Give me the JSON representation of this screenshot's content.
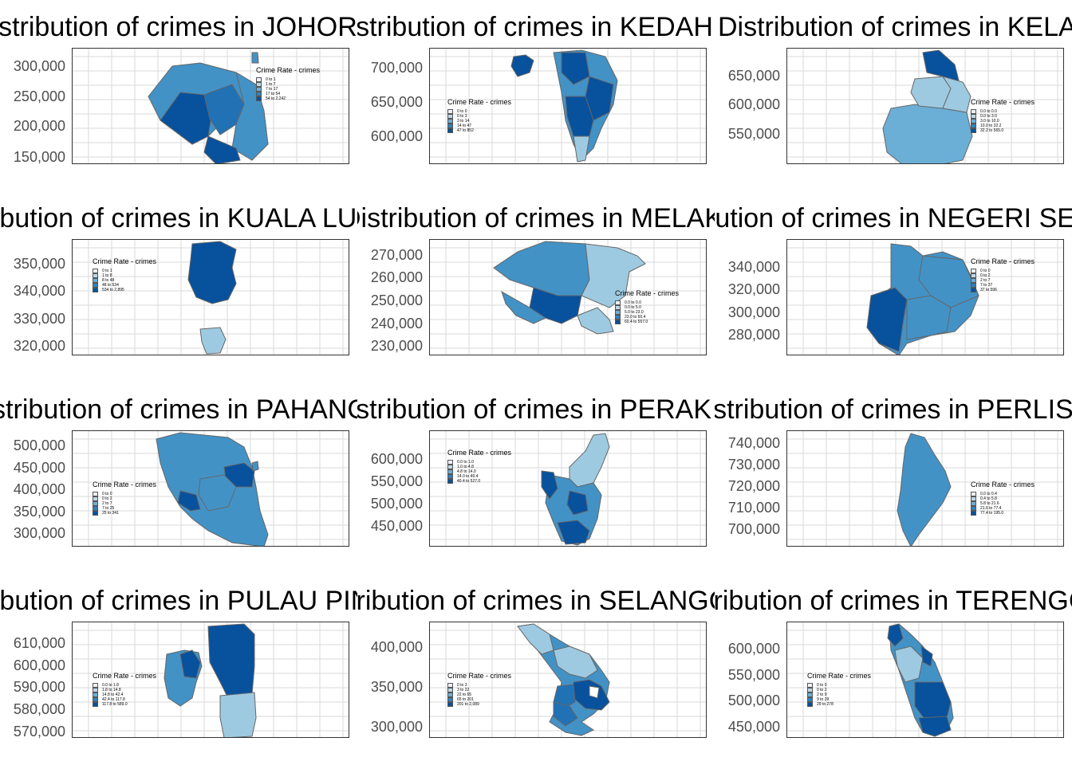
{
  "palette": [
    "#eff3ff",
    "#bdd7e7",
    "#6baed6",
    "#3182bd",
    "#08519c"
  ],
  "panels": [
    {
      "title": "Distribution of crimes in JOHOR",
      "legend_title": "Crime Rate - crimes",
      "y_ticks": [
        "300,000",
        "250,000",
        "200,000",
        "150,000"
      ],
      "legend_items": [
        "0 to 1",
        "1 to 7",
        "7 to 17",
        "17 to 54",
        "54 to 2,242"
      ]
    },
    {
      "title": "Distribution of crimes in KEDAH",
      "legend_title": "Crime Rate - crimes",
      "y_ticks": [
        "700,000",
        "650,000",
        "600,000"
      ],
      "legend_items": [
        "0 to 0",
        "0 to 3",
        "3 to 14",
        "14 to 47",
        "47 to 852"
      ]
    },
    {
      "title": "Distribution of crimes in KELANTAN",
      "legend_title": "Crime Rate - crimes",
      "y_ticks": [
        "650,000",
        "600,000",
        "550,000"
      ],
      "legend_items": [
        "0.0 to 0.0",
        "0.0 to 3.0",
        "3.0 to 10.0",
        "10.0 to 32.2",
        "32.2 to 565.0"
      ]
    },
    {
      "title": "Distribution of crimes in KUALA LUMPUR",
      "legend_title": "Crime Rate - crimes",
      "y_ticks": [
        "350,000",
        "340,000",
        "330,000",
        "320,000"
      ],
      "legend_items": [
        "0 to 1",
        "1 to 8",
        "8 to 48",
        "48 to 534",
        "534 to 2,895"
      ]
    },
    {
      "title": "Distribution of crimes in MELAKA",
      "legend_title": "Crime Rate - crimes",
      "y_ticks": [
        "270,000",
        "260,000",
        "250,000",
        "240,000",
        "230,000"
      ],
      "legend_items": [
        "0.0 to 0.0",
        "0.0 to 5.0",
        "5.0 to 23.0",
        "23.0 to 60.4",
        "60.4 to 557.0"
      ]
    },
    {
      "title": "Distribution of crimes in NEGERI SEMBILAN",
      "legend_title": "Crime Rate - crimes",
      "y_ticks": [
        "340,000",
        "320,000",
        "300,000",
        "280,000"
      ],
      "legend_items": [
        "0 to 0",
        "0 to 2",
        "2 to 7",
        "7 to 37",
        "37 to 596"
      ]
    },
    {
      "title": "Distribution of crimes in PAHANG",
      "legend_title": "Crime Rate - crimes",
      "y_ticks": [
        "500,000",
        "450,000",
        "400,000",
        "350,000",
        "300,000"
      ],
      "legend_items": [
        "0 to 0",
        "0 to 2",
        "2 to 7",
        "7 to 25",
        "25 to 341"
      ]
    },
    {
      "title": "Distribution of crimes in PERAK",
      "legend_title": "Crime Rate - crimes",
      "y_ticks": [
        "600,000",
        "550,000",
        "500,000",
        "450,000"
      ],
      "legend_items": [
        "0.0 to 1.0",
        "1.0 to 4.8",
        "4.8 to 14.0",
        "14.0 to 40.4",
        "40.4 to 527.0"
      ]
    },
    {
      "title": "Distribution of crimes in PERLIS",
      "legend_title": "Crime Rate - crimes",
      "y_ticks": [
        "740,000",
        "730,000",
        "720,000",
        "710,000",
        "700,000"
      ],
      "legend_items": [
        "0.0 to 0.4",
        "0.4 to 5.8",
        "5.8 to 21.6",
        "21.6 to 77.4",
        "77.4 to 195.0"
      ]
    },
    {
      "title": "Distribution of crimes in PULAU PINANG",
      "legend_title": "Crime Rate - crimes",
      "y_ticks": [
        "610,000",
        "600,000",
        "590,000",
        "580,000",
        "570,000"
      ],
      "legend_items": [
        "0.0 to 1.8",
        "1.8 to 14.8",
        "14.8 to 42.4",
        "42.4 to 117.8",
        "117.8 to 589.0"
      ]
    },
    {
      "title": "Distribution of crimes in SELANGOR",
      "legend_title": "Crime Rate - crimes",
      "y_ticks": [
        "400,000",
        "350,000",
        "300,000"
      ],
      "legend_items": [
        "0 to 3",
        "3 to 22",
        "22 to 65",
        "65 to 201",
        "201 to 2,089"
      ]
    },
    {
      "title": "Distribution of crimes in TERENGGANU",
      "legend_title": "Crime Rate - crimes",
      "y_ticks": [
        "600,000",
        "550,000",
        "500,000",
        "450,000"
      ],
      "legend_items": [
        "0 to 0",
        "0 to 2",
        "2 to 9",
        "9 to 29",
        "29 to 278"
      ]
    }
  ]
}
